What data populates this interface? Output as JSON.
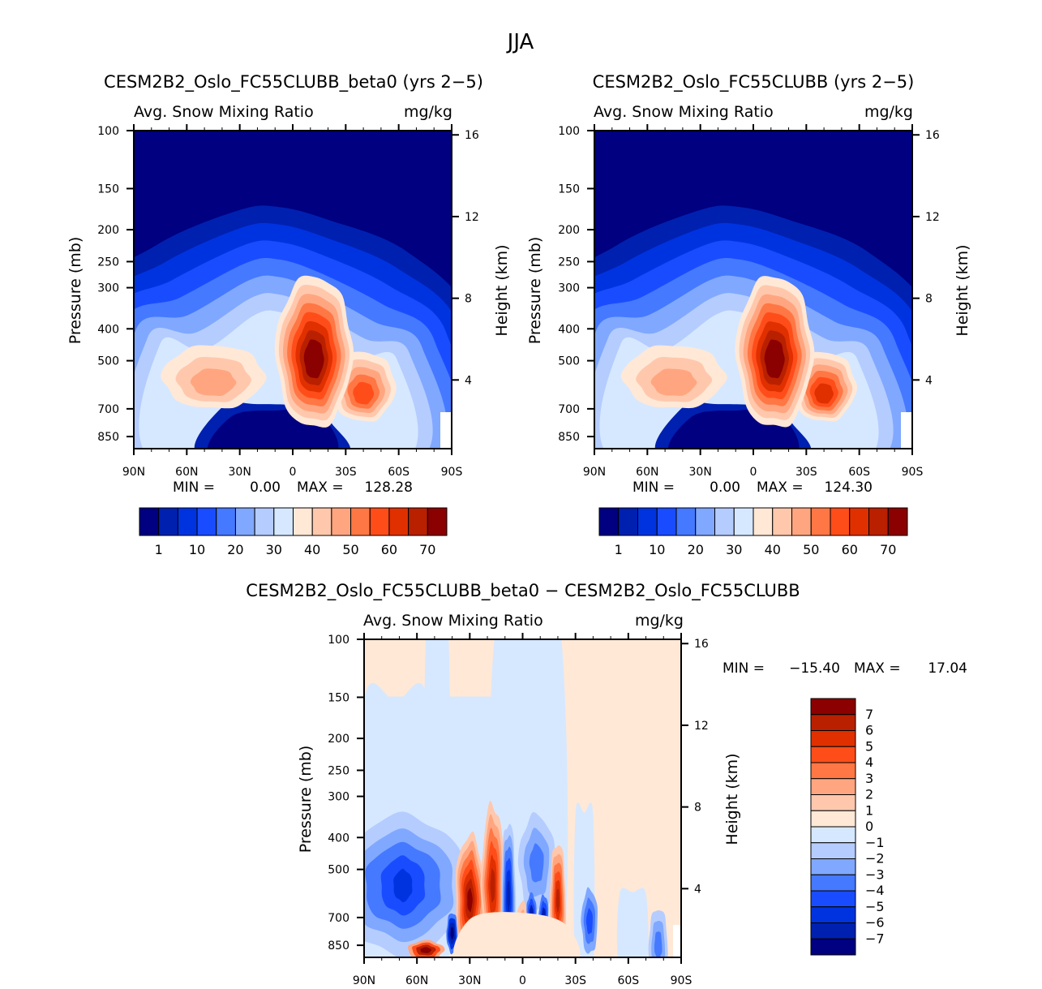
{
  "figure": {
    "season_title": "JJA"
  },
  "colors": {
    "levels": [
      "#000080",
      "#0020b0",
      "#0033e0",
      "#1a4cff",
      "#4579ff",
      "#80a8ff",
      "#b5ccff",
      "#d6e8ff",
      "#ffe8d6",
      "#ffc8ad",
      "#ffa680",
      "#ff7744",
      "#ff4d1a",
      "#e03000",
      "#b82000",
      "#8b0000"
    ]
  },
  "chart_data": [
    {
      "type": "heatmap",
      "id": "panel-beta0",
      "title": "CESM2B2_Oslo_FC55CLUBB_beta0 (yrs 2−5)",
      "subtitle_left": "Avg. Snow Mixing Ratio",
      "subtitle_right": "mg/kg",
      "xlabel": "",
      "ylabel": "Pressure (mb)",
      "ylabel_right": "Height (km)",
      "x_ticks": [
        "90N",
        "60N",
        "30N",
        "0",
        "30S",
        "60S",
        "90S"
      ],
      "x_range": [
        90,
        -90
      ],
      "y_ticks": [
        "100",
        "150",
        "200",
        "250",
        "300",
        "400",
        "500",
        "700",
        "850"
      ],
      "y_range_mb": [
        100,
        925
      ],
      "y_right_ticks": [
        "16",
        "12",
        "8",
        "4"
      ],
      "min_label": "MIN =",
      "min_value": "0.00",
      "max_label": "MAX =",
      "max_value": "128.28",
      "colorbar_labels": [
        "1",
        "10",
        "20",
        "30",
        "40",
        "50",
        "60",
        "70"
      ],
      "colorbar_orientation": "horizontal",
      "features": [
        {
          "desc": "tropical maximum core",
          "lat": -12,
          "p_mb": [
            380,
            680
          ],
          "value_range": "70+"
        },
        {
          "desc": "NH mid-latitude lobe",
          "lat": 45,
          "p_mb": [
            500,
            700
          ],
          "value_range": "40-50"
        },
        {
          "desc": "SH mid-latitude lobe",
          "lat": -40,
          "p_mb": [
            500,
            700
          ],
          "value_range": "50-60"
        }
      ]
    },
    {
      "type": "heatmap",
      "id": "panel-control",
      "title": "CESM2B2_Oslo_FC55CLUBB (yrs 2−5)",
      "subtitle_left": "Avg. Snow Mixing Ratio",
      "subtitle_right": "mg/kg",
      "xlabel": "",
      "ylabel": "Pressure (mb)",
      "ylabel_right": "Height (km)",
      "x_ticks": [
        "90N",
        "60N",
        "30N",
        "0",
        "30S",
        "60S",
        "90S"
      ],
      "x_range": [
        90,
        -90
      ],
      "y_ticks": [
        "100",
        "150",
        "200",
        "250",
        "300",
        "400",
        "500",
        "700",
        "850"
      ],
      "y_range_mb": [
        100,
        925
      ],
      "y_right_ticks": [
        "16",
        "12",
        "8",
        "4"
      ],
      "min_label": "MIN =",
      "min_value": "0.00",
      "max_label": "MAX =",
      "max_value": "124.30",
      "colorbar_labels": [
        "1",
        "10",
        "20",
        "30",
        "40",
        "50",
        "60",
        "70"
      ],
      "colorbar_orientation": "horizontal",
      "features": [
        {
          "desc": "tropical maximum core",
          "lat": -12,
          "p_mb": [
            380,
            680
          ],
          "value_range": "70+"
        },
        {
          "desc": "NH mid-latitude lobe",
          "lat": 45,
          "p_mb": [
            500,
            700
          ],
          "value_range": "40-50"
        },
        {
          "desc": "SH mid-latitude lobe",
          "lat": -40,
          "p_mb": [
            550,
            720
          ],
          "value_range": "50-60"
        }
      ]
    },
    {
      "type": "heatmap",
      "id": "panel-difference",
      "title": "CESM2B2_Oslo_FC55CLUBB_beta0 − CESM2B2_Oslo_FC55CLUBB",
      "subtitle_left": "Avg. Snow Mixing Ratio",
      "subtitle_right": "mg/kg",
      "xlabel": "",
      "ylabel": "Pressure (mb)",
      "ylabel_right": "Height (km)",
      "x_ticks": [
        "90N",
        "60N",
        "30N",
        "0",
        "30S",
        "60S",
        "90S"
      ],
      "x_range": [
        90,
        -90
      ],
      "y_ticks": [
        "100",
        "150",
        "200",
        "250",
        "300",
        "400",
        "500",
        "700",
        "850"
      ],
      "y_range_mb": [
        100,
        925
      ],
      "y_right_ticks": [
        "16",
        "12",
        "8",
        "4"
      ],
      "min_label": "MIN =",
      "min_value": "−15.40",
      "max_label": "MAX =",
      "max_value": "17.04",
      "colorbar_labels": [
        "7",
        "6",
        "5",
        "4",
        "3",
        "2",
        "1",
        "0",
        "−1",
        "−2",
        "−3",
        "−4",
        "−5",
        "−6",
        "−7"
      ],
      "colorbar_orientation": "vertical",
      "features": [
        {
          "desc": "NH extratropical negative region",
          "lat": 70,
          "p_mb": [
            330,
            850
          ],
          "value_range": "-2 to -5"
        },
        {
          "desc": "positive band",
          "lat": 35,
          "p_mb": [
            500,
            850
          ],
          "value_range": "3 to 7"
        },
        {
          "desc": "alternating positive/negative tropical cells",
          "lat": 0,
          "p_mb": [
            350,
            800
          ],
          "value_range": "-7 to 6"
        }
      ]
    }
  ]
}
